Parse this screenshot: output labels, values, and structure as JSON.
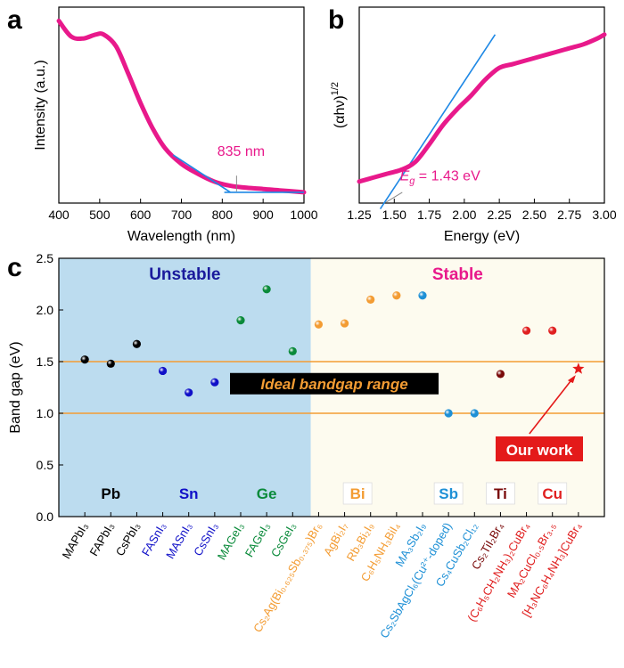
{
  "chart_data": [
    {
      "type": "line",
      "panel_label": "a",
      "xlabel": "Wavelength (nm)",
      "ylabel": "Intensity (a.u.)",
      "xlim": [
        400,
        1000
      ],
      "xticks": [
        "400",
        "500",
        "600",
        "700",
        "800",
        "900",
        "1000"
      ],
      "y_ticks_shown": false,
      "series": [
        {
          "color": "#e8198b",
          "x": [
            400,
            430,
            460,
            490,
            510,
            540,
            570,
            600,
            630,
            660,
            700,
            740,
            780,
            820,
            860,
            900,
            940,
            1000
          ],
          "y": [
            0.93,
            0.85,
            0.84,
            0.86,
            0.86,
            0.8,
            0.66,
            0.51,
            0.38,
            0.28,
            0.2,
            0.15,
            0.11,
            0.088,
            0.078,
            0.072,
            0.065,
            0.055
          ]
        }
      ],
      "annotation": {
        "text": "835 nm",
        "x": 835,
        "color": "#e8198b"
      },
      "fit_line_color": "#1e88e5"
    },
    {
      "type": "line",
      "panel_label": "b",
      "xlabel": "Energy (eV)",
      "ylabel": "(αhν)",
      "ylabel_superscript": "1/2",
      "xlim": [
        1.25,
        3.0
      ],
      "xticks": [
        "1.25",
        "1.50",
        "1.75",
        "2.00",
        "2.25",
        "2.50",
        "2.75",
        "3.00"
      ],
      "y_ticks_shown": false,
      "series": [
        {
          "color": "#e8198b",
          "x": [
            1.25,
            1.35,
            1.45,
            1.55,
            1.65,
            1.75,
            1.85,
            1.95,
            2.05,
            2.15,
            2.25,
            2.35,
            2.45,
            2.55,
            2.65,
            2.75,
            2.85,
            2.95,
            3.0
          ],
          "y": [
            0.11,
            0.13,
            0.15,
            0.17,
            0.21,
            0.3,
            0.4,
            0.48,
            0.55,
            0.63,
            0.69,
            0.71,
            0.73,
            0.75,
            0.77,
            0.79,
            0.81,
            0.84,
            0.86
          ]
        }
      ],
      "annotation": {
        "text_prefix": "E",
        "text_sub": "g",
        "text_value": " = 1.43 eV",
        "x": 1.43,
        "color": "#e8198b"
      },
      "fit_line_color": "#1e88e5"
    },
    {
      "type": "scatter",
      "panel_label": "c",
      "ylabel": "Band gap (eV)",
      "ylim": [
        0.0,
        2.5
      ],
      "yticks": [
        "0.0",
        "0.5",
        "1.0",
        "1.5",
        "2.0",
        "2.5"
      ],
      "regions": [
        {
          "label": "Unstable",
          "color": "#bcdcef",
          "label_color": "#1a1a9c"
        },
        {
          "label": "Stable",
          "color": "#fdfbef",
          "label_color": "#e8198b"
        }
      ],
      "ideal_range": {
        "label": "Ideal bandgap range",
        "low": 1.0,
        "high": 1.5,
        "line_color": "#f39c33"
      },
      "groups": [
        "Pb",
        "Sn",
        "Ge",
        "Bi",
        "Sb",
        "Ti",
        "Cu"
      ],
      "group_colors": {
        "Pb": "#000000",
        "Sn": "#1010c8",
        "Ge": "#0a8a3a",
        "Bi": "#f39c33",
        "Sb": "#1e90d6",
        "Ti": "#7a0a0a",
        "Cu": "#e02020"
      },
      "highlight": {
        "label": "Our work",
        "color": "#e41a1a"
      },
      "points": [
        {
          "label": "MAPbI₃",
          "value": 1.52,
          "group": "Pb"
        },
        {
          "label": "FAPbI₃",
          "value": 1.48,
          "group": "Pb"
        },
        {
          "label": "CsPbI₃",
          "value": 1.67,
          "group": "Pb"
        },
        {
          "label": "FASnI₃",
          "value": 1.41,
          "group": "Sn"
        },
        {
          "label": "MASnI₃",
          "value": 1.2,
          "group": "Sn"
        },
        {
          "label": "CsSnI₃",
          "value": 1.3,
          "group": "Sn"
        },
        {
          "label": "MAGeI₃",
          "value": 1.9,
          "group": "Ge"
        },
        {
          "label": "FAGeI₃",
          "value": 2.2,
          "group": "Ge"
        },
        {
          "label": "CsGeI₃",
          "value": 1.6,
          "group": "Ge"
        },
        {
          "label": "Cs₂Ag(Bi₀.₆₂₅Sb₀.₃₇₅)Br₆",
          "value": 1.86,
          "group": "Bi"
        },
        {
          "label": "AgBi₂I₇",
          "value": 1.87,
          "group": "Bi"
        },
        {
          "label": "Rb₃Bi₂I₉",
          "value": 2.1,
          "group": "Bi"
        },
        {
          "label": "C₆H₅NH₃BiI₄",
          "value": 2.14,
          "group": "Bi"
        },
        {
          "label": "MA₃Sb₂I₉",
          "value": 2.14,
          "group": "Sb"
        },
        {
          "label": "Cs₂SbAgCl₆(Cu²⁺-doped)",
          "value": 1.0,
          "group": "Sb"
        },
        {
          "label": "Cs₄CuSb₂Cl₁₂",
          "value": 1.0,
          "group": "Sb"
        },
        {
          "label": "Cs₂TiI₂Br₄",
          "value": 1.38,
          "group": "Ti"
        },
        {
          "label": "(C₆H₅CH₂NH₃)₂CuBr₄",
          "value": 1.8,
          "group": "Cu"
        },
        {
          "label": "MA₂CuCl₀.₅Br₃.₅",
          "value": 1.8,
          "group": "Cu"
        },
        {
          "label": "[H₃NC₆H₄NH₃]CuBr₄",
          "value": 1.43,
          "group": "Cu",
          "highlight": true
        }
      ]
    }
  ]
}
